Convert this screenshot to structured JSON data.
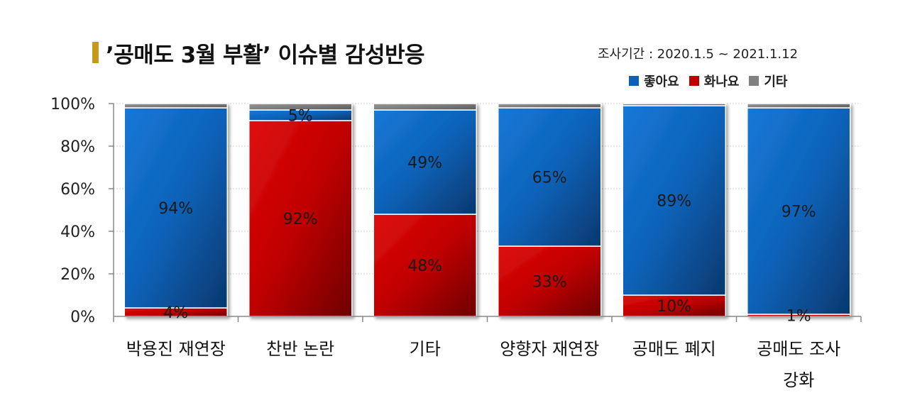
{
  "title": "’공매도 3월 부활’ 이슈별 감성반응",
  "period": "조사기간 : 2020.1.5 ~ 2021.1.12",
  "colors": {
    "accent": "#c59a1a",
    "good": "#0a62b8",
    "angry": "#c00000",
    "other": "#808080"
  },
  "chart_data": {
    "type": "bar",
    "stacked": true,
    "percent": true,
    "categories": [
      "박용진 재연장",
      "찬반 논란",
      "기타",
      "양향자 재연장",
      "공매도 폐지",
      "공매도 조사\n강화"
    ],
    "series": [
      {
        "name": "화나요",
        "values": [
          4,
          92,
          48,
          33,
          10,
          1
        ],
        "labels": [
          "4%",
          "92%",
          "48%",
          "33%",
          "10%",
          "1%"
        ],
        "color": "#c00000"
      },
      {
        "name": "좋아요",
        "values": [
          94,
          5,
          49,
          65,
          89,
          97
        ],
        "labels": [
          "94%",
          "5%",
          "49%",
          "65%",
          "89%",
          "97%"
        ],
        "color": "#0a62b8"
      },
      {
        "name": "기타",
        "values": [
          2,
          3,
          3,
          2,
          1,
          2
        ],
        "labels": [
          "",
          "",
          "",
          "",
          "",
          ""
        ],
        "color": "#808080"
      }
    ],
    "legend": [
      "좋아요",
      "화나요",
      "기타"
    ],
    "yticks": [
      "0%",
      "20%",
      "40%",
      "60%",
      "80%",
      "100%"
    ],
    "ylim": [
      0,
      100
    ],
    "grid": true,
    "legend_position": "top-right"
  }
}
